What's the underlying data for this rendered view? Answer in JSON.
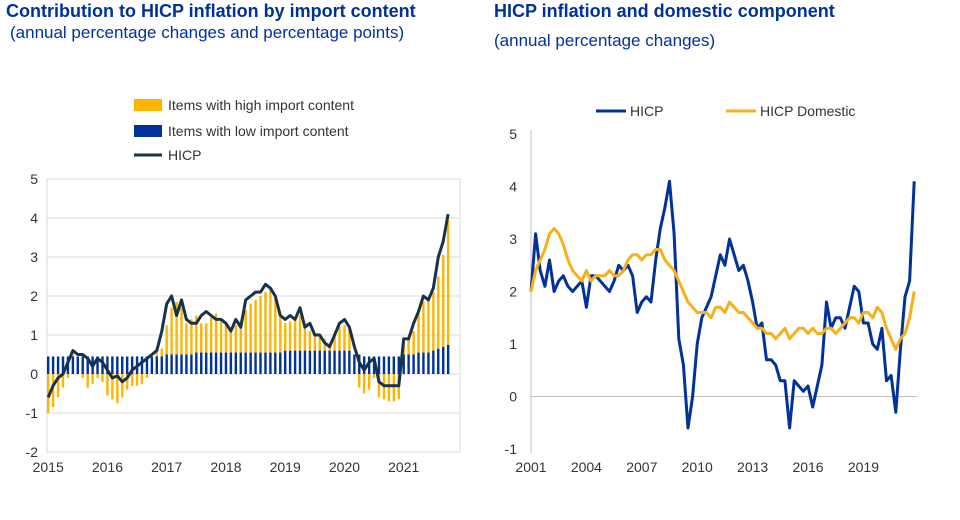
{
  "charts": {
    "left": {
      "title": "Contribution to HICP inflation by import content",
      "subtitle": "(annual percentage changes and percentage points)"
    },
    "right": {
      "title": "HICP inflation and domestic component",
      "subtitle": "(annual percentage changes)"
    }
  },
  "colors": {
    "high_import": "#FFB400",
    "low_import": "#003299",
    "hicp_left": "#17334A",
    "hicp_right": "#003299",
    "hicp_domestic": "#F5B01B",
    "grid": "#D9D9D9"
  },
  "chart_data": [
    {
      "type": "bar",
      "stacked": true,
      "legend_position": "top",
      "grid": true,
      "ylim": [
        -2,
        5
      ],
      "yticks": [
        -2,
        -1,
        0,
        1,
        2,
        3,
        4,
        5
      ],
      "xtick_labels": [
        "2015",
        "2016",
        "2017",
        "2018",
        "2019",
        "2020",
        "2021"
      ],
      "x_start": 2015.0,
      "x_end": 2021.9,
      "series": [
        {
          "name": "Items with high import content",
          "kind": "bar",
          "x": [
            2015.0,
            2015.083,
            2015.167,
            2015.25,
            2015.333,
            2015.417,
            2015.5,
            2015.583,
            2015.667,
            2015.75,
            2015.833,
            2015.917,
            2016.0,
            2016.083,
            2016.167,
            2016.25,
            2016.333,
            2016.417,
            2016.5,
            2016.583,
            2016.667,
            2016.75,
            2016.833,
            2016.917,
            2017.0,
            2017.083,
            2017.167,
            2017.25,
            2017.333,
            2017.417,
            2017.5,
            2017.583,
            2017.667,
            2017.75,
            2017.833,
            2017.917,
            2018.0,
            2018.083,
            2018.167,
            2018.25,
            2018.333,
            2018.417,
            2018.5,
            2018.583,
            2018.667,
            2018.75,
            2018.833,
            2018.917,
            2019.0,
            2019.083,
            2019.167,
            2019.25,
            2019.333,
            2019.417,
            2019.5,
            2019.583,
            2019.667,
            2019.75,
            2019.833,
            2019.917,
            2020.0,
            2020.083,
            2020.167,
            2020.25,
            2020.333,
            2020.417,
            2020.5,
            2020.583,
            2020.667,
            2020.75,
            2020.833,
            2020.917,
            2021.0,
            2021.083,
            2021.167,
            2021.25,
            2021.333,
            2021.417,
            2021.5,
            2021.583,
            2021.667,
            2021.75
          ],
          "values": [
            -1.0,
            -0.85,
            -0.6,
            -0.35,
            -0.1,
            0.05,
            0.0,
            -0.1,
            -0.35,
            -0.25,
            -0.1,
            -0.2,
            -0.55,
            -0.65,
            -0.75,
            -0.6,
            -0.4,
            -0.3,
            -0.3,
            -0.25,
            -0.1,
            0.0,
            0.1,
            0.2,
            0.75,
            1.2,
            1.35,
            1.2,
            0.8,
            0.9,
            0.95,
            0.75,
            0.75,
            0.9,
            1.0,
            0.8,
            0.7,
            0.65,
            0.7,
            0.85,
            1.1,
            1.25,
            1.35,
            1.45,
            1.55,
            1.6,
            1.4,
            1.0,
            0.7,
            0.75,
            0.85,
            0.9,
            0.7,
            0.5,
            0.45,
            0.4,
            0.3,
            0.2,
            0.4,
            0.6,
            0.65,
            0.55,
            0.0,
            -0.35,
            -0.5,
            -0.4,
            -0.1,
            -0.6,
            -0.65,
            -0.7,
            -0.7,
            -0.65,
            0.4,
            0.45,
            0.6,
            1.0,
            1.3,
            1.4,
            1.5,
            1.85,
            2.35,
            3.2
          ]
        },
        {
          "name": "Items with low import content",
          "kind": "bar",
          "x": [
            2015.0,
            2015.083,
            2015.167,
            2015.25,
            2015.333,
            2015.417,
            2015.5,
            2015.583,
            2015.667,
            2015.75,
            2015.833,
            2015.917,
            2016.0,
            2016.083,
            2016.167,
            2016.25,
            2016.333,
            2016.417,
            2016.5,
            2016.583,
            2016.667,
            2016.75,
            2016.833,
            2016.917,
            2017.0,
            2017.083,
            2017.167,
            2017.25,
            2017.333,
            2017.417,
            2017.5,
            2017.583,
            2017.667,
            2017.75,
            2017.833,
            2017.917,
            2018.0,
            2018.083,
            2018.167,
            2018.25,
            2018.333,
            2018.417,
            2018.5,
            2018.583,
            2018.667,
            2018.75,
            2018.833,
            2018.917,
            2019.0,
            2019.083,
            2019.167,
            2019.25,
            2019.333,
            2019.417,
            2019.5,
            2019.583,
            2019.667,
            2019.75,
            2019.833,
            2019.917,
            2020.0,
            2020.083,
            2020.167,
            2020.25,
            2020.333,
            2020.417,
            2020.5,
            2020.583,
            2020.667,
            2020.75,
            2020.833,
            2020.917,
            2021.0,
            2021.083,
            2021.167,
            2021.25,
            2021.333,
            2021.417,
            2021.5,
            2021.583,
            2021.667,
            2021.75
          ],
          "values": [
            0.45,
            0.45,
            0.45,
            0.45,
            0.45,
            0.45,
            0.45,
            0.45,
            0.45,
            0.45,
            0.45,
            0.45,
            0.45,
            0.45,
            0.45,
            0.45,
            0.45,
            0.45,
            0.45,
            0.45,
            0.45,
            0.45,
            0.45,
            0.45,
            0.5,
            0.5,
            0.5,
            0.5,
            0.5,
            0.5,
            0.55,
            0.55,
            0.55,
            0.55,
            0.55,
            0.55,
            0.55,
            0.55,
            0.55,
            0.55,
            0.55,
            0.55,
            0.55,
            0.55,
            0.55,
            0.55,
            0.55,
            0.55,
            0.6,
            0.6,
            0.6,
            0.6,
            0.6,
            0.6,
            0.6,
            0.6,
            0.6,
            0.6,
            0.6,
            0.6,
            0.6,
            0.6,
            0.5,
            0.5,
            0.45,
            0.45,
            0.45,
            0.45,
            0.45,
            0.45,
            0.45,
            0.45,
            0.5,
            0.5,
            0.5,
            0.55,
            0.55,
            0.55,
            0.6,
            0.65,
            0.7,
            0.75
          ]
        },
        {
          "name": "HICP",
          "kind": "line",
          "x": [
            2015.0,
            2015.083,
            2015.167,
            2015.25,
            2015.333,
            2015.417,
            2015.5,
            2015.583,
            2015.667,
            2015.75,
            2015.833,
            2015.917,
            2016.0,
            2016.083,
            2016.167,
            2016.25,
            2016.333,
            2016.417,
            2016.5,
            2016.583,
            2016.667,
            2016.75,
            2016.833,
            2016.917,
            2017.0,
            2017.083,
            2017.167,
            2017.25,
            2017.333,
            2017.417,
            2017.5,
            2017.583,
            2017.667,
            2017.75,
            2017.833,
            2017.917,
            2018.0,
            2018.083,
            2018.167,
            2018.25,
            2018.333,
            2018.417,
            2018.5,
            2018.583,
            2018.667,
            2018.75,
            2018.833,
            2018.917,
            2019.0,
            2019.083,
            2019.167,
            2019.25,
            2019.333,
            2019.417,
            2019.5,
            2019.583,
            2019.667,
            2019.75,
            2019.833,
            2019.917,
            2020.0,
            2020.083,
            2020.167,
            2020.25,
            2020.333,
            2020.417,
            2020.5,
            2020.583,
            2020.667,
            2020.75,
            2020.833,
            2020.917,
            2021.0,
            2021.083,
            2021.167,
            2021.25,
            2021.333,
            2021.417,
            2021.5,
            2021.583,
            2021.667,
            2021.75
          ],
          "values": [
            -0.6,
            -0.3,
            -0.1,
            0.0,
            0.3,
            0.6,
            0.5,
            0.5,
            0.4,
            0.2,
            0.4,
            0.3,
            0.1,
            -0.1,
            -0.05,
            -0.2,
            -0.1,
            0.1,
            0.2,
            0.3,
            0.4,
            0.5,
            0.6,
            1.1,
            1.8,
            2.0,
            1.5,
            1.9,
            1.4,
            1.3,
            1.3,
            1.5,
            1.6,
            1.5,
            1.4,
            1.4,
            1.3,
            1.1,
            1.4,
            1.2,
            1.9,
            2.0,
            2.1,
            2.1,
            2.3,
            2.2,
            2.0,
            1.5,
            1.4,
            1.5,
            1.4,
            1.7,
            1.2,
            1.3,
            1.0,
            1.0,
            0.8,
            0.7,
            1.0,
            1.3,
            1.4,
            1.2,
            0.7,
            0.3,
            0.1,
            0.3,
            0.4,
            -0.2,
            -0.3,
            -0.3,
            -0.3,
            -0.3,
            0.9,
            0.9,
            1.3,
            1.6,
            2.0,
            1.9,
            2.2,
            3.0,
            3.4,
            4.1
          ]
        }
      ]
    },
    {
      "type": "line",
      "legend_position": "top",
      "grid": false,
      "ylim": [
        -1,
        5
      ],
      "yticks": [
        -1,
        0,
        1,
        2,
        3,
        4,
        5
      ],
      "xtick_labels": [
        "2001",
        "2004",
        "2007",
        "2010",
        "2013",
        "2016",
        "2019"
      ],
      "x_start": 2001.0,
      "x_end": 2021.75,
      "series": [
        {
          "name": "HICP",
          "x": [
            2001.0,
            2001.25,
            2001.5,
            2001.75,
            2002.0,
            2002.25,
            2002.5,
            2002.75,
            2003.0,
            2003.25,
            2003.5,
            2003.75,
            2004.0,
            2004.25,
            2004.5,
            2004.75,
            2005.0,
            2005.25,
            2005.5,
            2005.75,
            2006.0,
            2006.25,
            2006.5,
            2006.75,
            2007.0,
            2007.25,
            2007.5,
            2007.75,
            2008.0,
            2008.25,
            2008.5,
            2008.75,
            2009.0,
            2009.25,
            2009.5,
            2009.75,
            2010.0,
            2010.25,
            2010.5,
            2010.75,
            2011.0,
            2011.25,
            2011.5,
            2011.75,
            2012.0,
            2012.25,
            2012.5,
            2012.75,
            2013.0,
            2013.25,
            2013.5,
            2013.75,
            2014.0,
            2014.25,
            2014.5,
            2014.75,
            2015.0,
            2015.25,
            2015.5,
            2015.75,
            2016.0,
            2016.25,
            2016.5,
            2016.75,
            2017.0,
            2017.25,
            2017.5,
            2017.75,
            2018.0,
            2018.25,
            2018.5,
            2018.75,
            2019.0,
            2019.25,
            2019.5,
            2019.75,
            2020.0,
            2020.25,
            2020.5,
            2020.75,
            2021.0,
            2021.25,
            2021.5,
            2021.75
          ],
          "values": [
            2.0,
            3.1,
            2.4,
            2.1,
            2.6,
            2.0,
            2.2,
            2.3,
            2.1,
            2.0,
            2.1,
            2.2,
            1.7,
            2.3,
            2.3,
            2.2,
            2.1,
            2.0,
            2.2,
            2.5,
            2.4,
            2.5,
            2.3,
            1.6,
            1.8,
            1.9,
            1.8,
            2.6,
            3.2,
            3.6,
            4.1,
            3.1,
            1.1,
            0.6,
            -0.6,
            0.0,
            1.0,
            1.5,
            1.7,
            1.9,
            2.3,
            2.7,
            2.5,
            3.0,
            2.7,
            2.4,
            2.5,
            2.2,
            1.8,
            1.3,
            1.4,
            0.7,
            0.7,
            0.6,
            0.3,
            0.3,
            -0.6,
            0.3,
            0.2,
            0.1,
            0.2,
            -0.2,
            0.2,
            0.6,
            1.8,
            1.3,
            1.5,
            1.5,
            1.3,
            1.7,
            2.1,
            2.0,
            1.4,
            1.4,
            1.0,
            0.9,
            1.3,
            0.3,
            0.4,
            -0.3,
            0.9,
            1.9,
            2.2,
            4.1
          ]
        },
        {
          "name": "HICP Domestic",
          "x": [
            2001.0,
            2001.25,
            2001.5,
            2001.75,
            2002.0,
            2002.25,
            2002.5,
            2002.75,
            2003.0,
            2003.25,
            2003.5,
            2003.75,
            2004.0,
            2004.25,
            2004.5,
            2004.75,
            2005.0,
            2005.25,
            2005.5,
            2005.75,
            2006.0,
            2006.25,
            2006.5,
            2006.75,
            2007.0,
            2007.25,
            2007.5,
            2007.75,
            2008.0,
            2008.25,
            2008.5,
            2008.75,
            2009.0,
            2009.25,
            2009.5,
            2009.75,
            2010.0,
            2010.25,
            2010.5,
            2010.75,
            2011.0,
            2011.25,
            2011.5,
            2011.75,
            2012.0,
            2012.25,
            2012.5,
            2012.75,
            2013.0,
            2013.25,
            2013.5,
            2013.75,
            2014.0,
            2014.25,
            2014.5,
            2014.75,
            2015.0,
            2015.25,
            2015.5,
            2015.75,
            2016.0,
            2016.25,
            2016.5,
            2016.75,
            2017.0,
            2017.25,
            2017.5,
            2017.75,
            2018.0,
            2018.25,
            2018.5,
            2018.75,
            2019.0,
            2019.25,
            2019.5,
            2019.75,
            2020.0,
            2020.25,
            2020.5,
            2020.75,
            2021.0,
            2021.25,
            2021.5,
            2021.75
          ],
          "values": [
            2.0,
            2.4,
            2.6,
            2.8,
            3.1,
            3.2,
            3.1,
            2.9,
            2.6,
            2.4,
            2.3,
            2.2,
            2.4,
            2.2,
            2.3,
            2.3,
            2.3,
            2.4,
            2.3,
            2.3,
            2.4,
            2.6,
            2.7,
            2.7,
            2.6,
            2.7,
            2.7,
            2.8,
            2.8,
            2.6,
            2.5,
            2.4,
            2.2,
            2.0,
            1.8,
            1.7,
            1.6,
            1.6,
            1.6,
            1.5,
            1.7,
            1.7,
            1.6,
            1.8,
            1.7,
            1.6,
            1.6,
            1.5,
            1.4,
            1.3,
            1.3,
            1.2,
            1.2,
            1.1,
            1.2,
            1.3,
            1.1,
            1.2,
            1.3,
            1.3,
            1.2,
            1.3,
            1.2,
            1.2,
            1.3,
            1.3,
            1.2,
            1.3,
            1.4,
            1.5,
            1.5,
            1.4,
            1.6,
            1.6,
            1.5,
            1.7,
            1.6,
            1.3,
            1.1,
            0.9,
            1.1,
            1.2,
            1.5,
            2.0
          ]
        }
      ]
    }
  ]
}
